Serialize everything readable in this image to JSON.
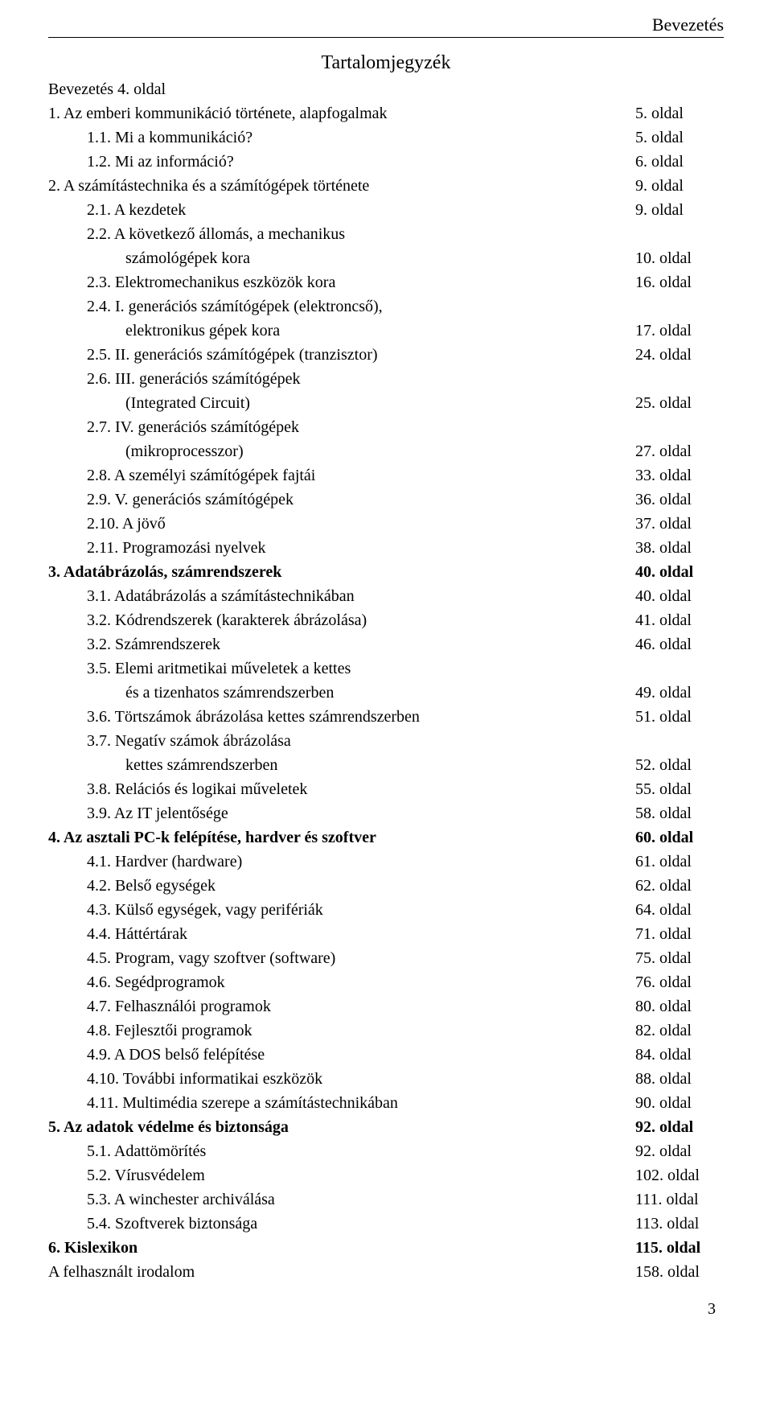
{
  "header": {
    "text": "Bevezetés"
  },
  "title": "Tartalomjegyzék",
  "page_number": "3",
  "lines": [
    {
      "left": "Bevezetés 4. oldal",
      "right": "",
      "indent": 0,
      "bold": false
    },
    {
      "left": "1. Az emberi kommunikáció története, alapfogalmak",
      "right": "5. oldal",
      "indent": 0,
      "bold": false
    },
    {
      "left": "1.1. Mi a kommunikáció?",
      "right": "5. oldal",
      "indent": 1,
      "bold": false
    },
    {
      "left": "1.2. Mi az információ?",
      "right": "6. oldal",
      "indent": 1,
      "bold": false
    },
    {
      "left": "2. A számítástechnika és a számítógépek története",
      "right": "9. oldal",
      "indent": 0,
      "bold": false
    },
    {
      "left": "2.1. A kezdetek",
      "right": "9. oldal",
      "indent": 1,
      "bold": false
    },
    {
      "left": "2.2. A következő állomás, a mechanikus",
      "right": "",
      "indent": 1,
      "bold": false
    },
    {
      "left": "számológépek kora",
      "right": "10. oldal",
      "indent": 2,
      "bold": false
    },
    {
      "left": "2.3. Elektromechanikus eszközök kora",
      "right": "16. oldal",
      "indent": 1,
      "bold": false
    },
    {
      "left": "2.4. I. generációs számítógépek (elektroncső),",
      "right": "",
      "indent": 1,
      "bold": false
    },
    {
      "left": "elektronikus gépek kora",
      "right": "17. oldal",
      "indent": 2,
      "bold": false
    },
    {
      "left": "2.5. II. generációs számítógépek (tranzisztor)",
      "right": "24. oldal",
      "indent": 1,
      "bold": false
    },
    {
      "left": "2.6. III. generációs számítógépek",
      "right": "",
      "indent": 1,
      "bold": false
    },
    {
      "left": "(Integrated Circuit)",
      "right": "25. oldal",
      "indent": 2,
      "bold": false
    },
    {
      "left": "2.7. IV. generációs számítógépek",
      "right": "",
      "indent": 1,
      "bold": false
    },
    {
      "left": "(mikroprocesszor)",
      "right": "27. oldal",
      "indent": 2,
      "bold": false
    },
    {
      "left": "2.8. A személyi számítógépek fajtái",
      "right": "33. oldal",
      "indent": 1,
      "bold": false
    },
    {
      "left": "2.9. V. generációs számítógépek",
      "right": "36. oldal",
      "indent": 1,
      "bold": false
    },
    {
      "left": "2.10. A jövő",
      "right": "37. oldal",
      "indent": 1,
      "bold": false
    },
    {
      "left": "2.11. Programozási nyelvek",
      "right": "38. oldal",
      "indent": 1,
      "bold": false
    },
    {
      "left": "3. Adatábrázolás, számrendszerek",
      "right": "40. oldal",
      "indent": 0,
      "bold": true
    },
    {
      "left": "3.1. Adatábrázolás a számítástechnikában",
      "right": "40. oldal",
      "indent": 1,
      "bold": false
    },
    {
      "left": "3.2. Kódrendszerek (karakterek ábrázolása)",
      "right": "41. oldal",
      "indent": 1,
      "bold": false
    },
    {
      "left": "3.2. Számrendszerek",
      "right": "46. oldal",
      "indent": 1,
      "bold": false
    },
    {
      "left": "3.5. Elemi aritmetikai műveletek a kettes",
      "right": "",
      "indent": 1,
      "bold": false
    },
    {
      "left": "és a tizenhatos számrendszerben",
      "right": "49. oldal",
      "indent": 2,
      "bold": false
    },
    {
      "left": "3.6. Törtszámok ábrázolása kettes számrendszerben",
      "right": "51. oldal",
      "indent": 1,
      "bold": false
    },
    {
      "left": "3.7. Negatív számok ábrázolása",
      "right": "",
      "indent": 1,
      "bold": false
    },
    {
      "left": "kettes számrendszerben",
      "right": "52. oldal",
      "indent": 2,
      "bold": false
    },
    {
      "left": "3.8. Relációs és logikai műveletek",
      "right": "55. oldal",
      "indent": 1,
      "bold": false
    },
    {
      "left": "3.9. Az IT jelentősége",
      "right": "58. oldal",
      "indent": 1,
      "bold": false
    },
    {
      "left": "4. Az asztali PC-k felépítése, hardver és szoftver",
      "right": "60. oldal",
      "indent": 0,
      "bold": true
    },
    {
      "left": "4.1. Hardver (hardware)",
      "right": "61. oldal",
      "indent": 1,
      "bold": false
    },
    {
      "left": "4.2. Belső egységek",
      "right": "62. oldal",
      "indent": 1,
      "bold": false
    },
    {
      "left": "4.3. Külső egységek, vagy perifériák",
      "right": "64. oldal",
      "indent": 1,
      "bold": false
    },
    {
      "left": "4.4. Háttértárak",
      "right": "71. oldal",
      "indent": 1,
      "bold": false
    },
    {
      "left": "4.5. Program, vagy szoftver (software)",
      "right": "75. oldal",
      "indent": 1,
      "bold": false
    },
    {
      "left": "4.6. Segédprogramok",
      "right": "76. oldal",
      "indent": 1,
      "bold": false
    },
    {
      "left": "4.7. Felhasználói programok",
      "right": "80. oldal",
      "indent": 1,
      "bold": false
    },
    {
      "left": "4.8. Fejlesztői programok",
      "right": "82. oldal",
      "indent": 1,
      "bold": false
    },
    {
      "left": "4.9. A DOS belső felépítése",
      "right": "84. oldal",
      "indent": 1,
      "bold": false
    },
    {
      "left": "4.10. További informatikai eszközök",
      "right": "88. oldal",
      "indent": 1,
      "bold": false
    },
    {
      "left": "4.11. Multimédia szerepe a számítástechnikában",
      "right": "90. oldal",
      "indent": 1,
      "bold": false
    },
    {
      "left": "5. Az adatok védelme és biztonsága",
      "right": "92. oldal",
      "indent": 0,
      "bold": true
    },
    {
      "left": "5.1. Adattömörítés",
      "right": "92. oldal",
      "indent": 1,
      "bold": false
    },
    {
      "left": "5.2. Vírusvédelem",
      "right": "102. oldal",
      "indent": 1,
      "bold": false
    },
    {
      "left": "5.3. A winchester archiválása",
      "right": "111. oldal",
      "indent": 1,
      "bold": false
    },
    {
      "left": "5.4. Szoftverek biztonsága",
      "right": "113. oldal",
      "indent": 1,
      "bold": false
    },
    {
      "left": "6. Kislexikon",
      "right": "115. oldal",
      "indent": 0,
      "bold": true
    },
    {
      "left": "A felhasznált irodalom",
      "right": "158. oldal",
      "indent": 0,
      "bold": false
    }
  ]
}
